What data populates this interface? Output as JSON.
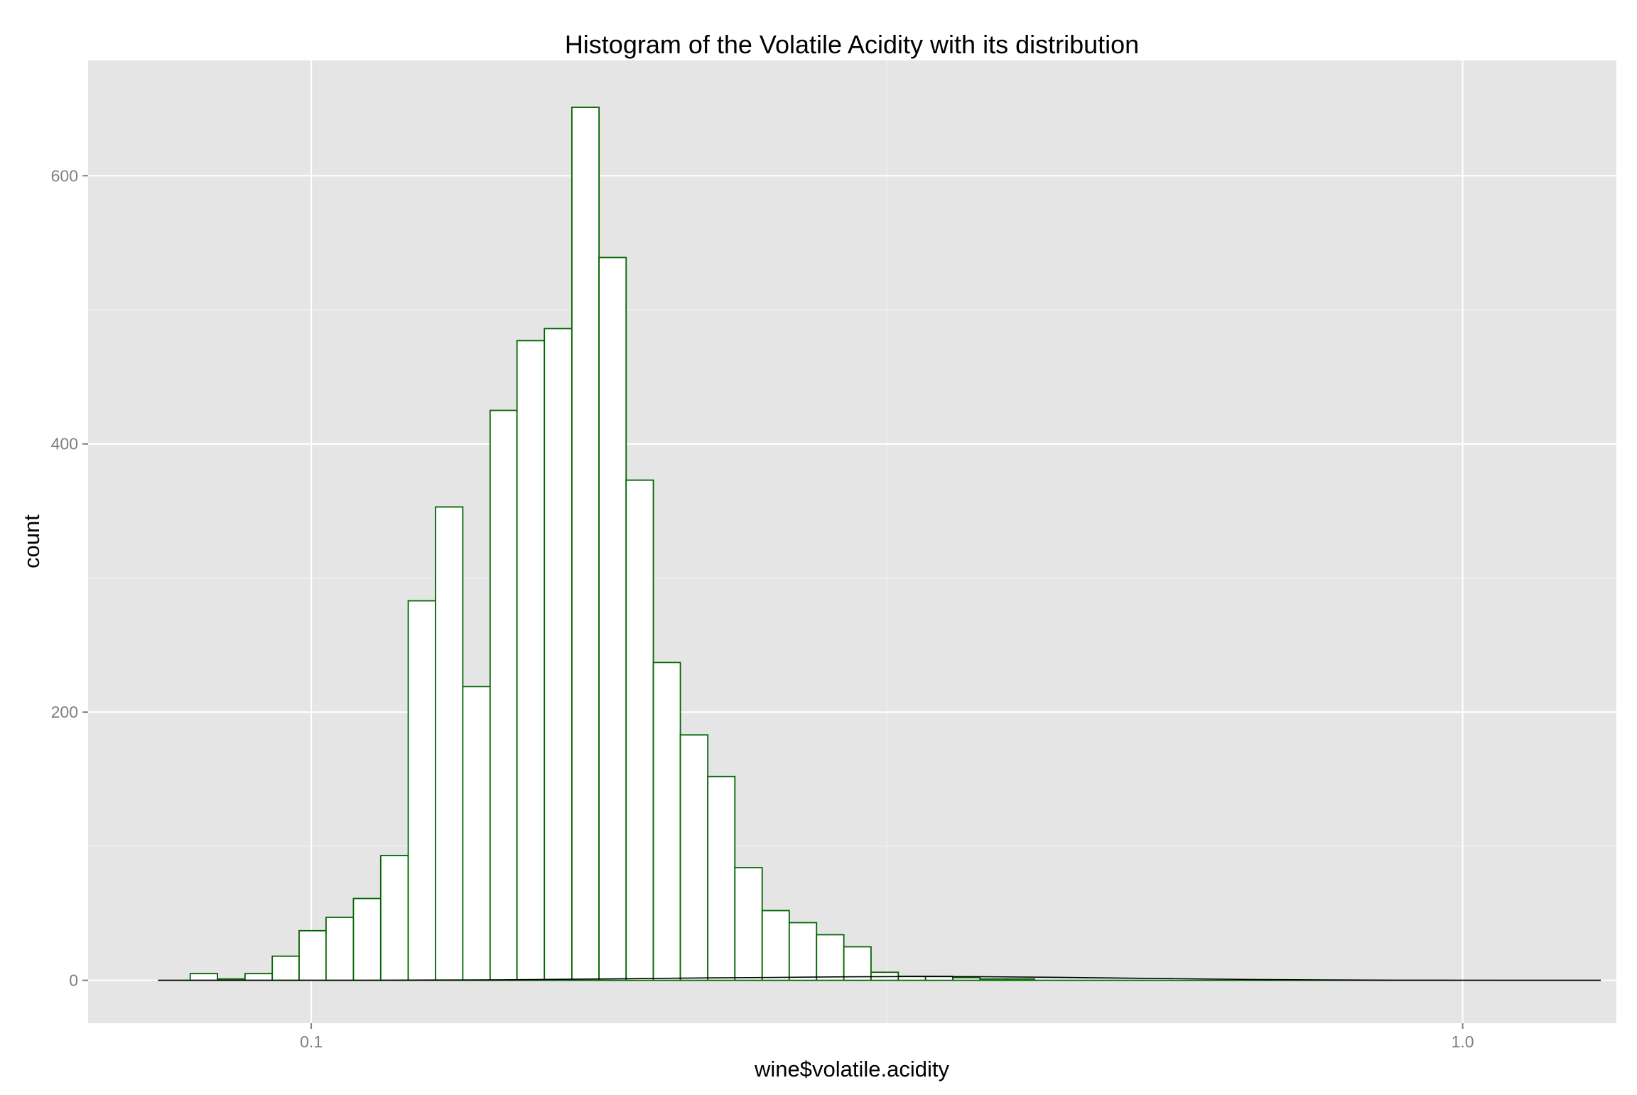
{
  "chart_data": {
    "type": "bar",
    "title": "Histogram of the Volatile Acidity with its distribution",
    "xlabel": "wine$volatile.acidity",
    "ylabel": "count",
    "x_scale": "log10",
    "xlim": [
      0.064,
      1.36
    ],
    "ylim": [
      -32,
      686
    ],
    "x_ticks": [
      {
        "value": 0.1,
        "label": "0.1"
      },
      {
        "value": 1.0,
        "label": "1.0"
      }
    ],
    "y_ticks": [
      {
        "value": 0,
        "label": "0"
      },
      {
        "value": 200,
        "label": "200"
      },
      {
        "value": 400,
        "label": "400"
      },
      {
        "value": 600,
        "label": "600"
      }
    ],
    "grid": true,
    "bin_edges": [
      0.0736,
      0.0846,
      0.0969,
      0.1113,
      0.1277,
      0.1463,
      0.1679,
      0.1926,
      0.2209,
      0.2534,
      0.2907,
      0.3336,
      0.3827,
      0.4391,
      0.5037,
      0.5779,
      0.663,
      0.7608,
      0.8727,
      1.0013,
      1.1488,
      1.3181
    ],
    "bins": [
      {
        "x0": 0.0785,
        "x1": 0.0829,
        "count": 5
      },
      {
        "x0": 0.0829,
        "x1": 0.0876,
        "count": 1
      },
      {
        "x0": 0.0876,
        "x1": 0.0925,
        "count": 5
      },
      {
        "x0": 0.0925,
        "x1": 0.0976,
        "count": 18
      },
      {
        "x0": 0.0976,
        "x1": 0.103,
        "count": 37
      },
      {
        "x0": 0.103,
        "x1": 0.1088,
        "count": 47
      },
      {
        "x0": 0.1088,
        "x1": 0.1149,
        "count": 61
      },
      {
        "x0": 0.1149,
        "x1": 0.1214,
        "count": 93
      },
      {
        "x0": 0.1214,
        "x1": 0.1282,
        "count": 283
      },
      {
        "x0": 0.1282,
        "x1": 0.1354,
        "count": 353
      },
      {
        "x0": 0.1354,
        "x1": 0.143,
        "count": 219
      },
      {
        "x0": 0.143,
        "x1": 0.1509,
        "count": 425
      },
      {
        "x0": 0.1509,
        "x1": 0.1594,
        "count": 477
      },
      {
        "x0": 0.1594,
        "x1": 0.1684,
        "count": 486
      },
      {
        "x0": 0.1684,
        "x1": 0.1778,
        "count": 651
      },
      {
        "x0": 0.1778,
        "x1": 0.1877,
        "count": 539
      },
      {
        "x0": 0.1877,
        "x1": 0.1982,
        "count": 373
      },
      {
        "x0": 0.1982,
        "x1": 0.2092,
        "count": 237
      },
      {
        "x0": 0.2092,
        "x1": 0.221,
        "count": 183
      },
      {
        "x0": 0.221,
        "x1": 0.2333,
        "count": 152
      },
      {
        "x0": 0.2333,
        "x1": 0.2464,
        "count": 84
      },
      {
        "x0": 0.2464,
        "x1": 0.2601,
        "count": 52
      },
      {
        "x0": 0.2601,
        "x1": 0.2747,
        "count": 43
      },
      {
        "x0": 0.2747,
        "x1": 0.2901,
        "count": 34
      },
      {
        "x0": 0.2901,
        "x1": 0.3063,
        "count": 25
      },
      {
        "x0": 0.3063,
        "x1": 0.3235,
        "count": 6
      },
      {
        "x0": 0.3235,
        "x1": 0.3416,
        "count": 3
      },
      {
        "x0": 0.3416,
        "x1": 0.3607,
        "count": 3
      },
      {
        "x0": 0.3607,
        "x1": 0.3809,
        "count": 2
      },
      {
        "x0": 0.3809,
        "x1": 0.4022,
        "count": 1
      },
      {
        "x0": 0.4022,
        "x1": 0.4248,
        "count": 1
      }
    ],
    "density_overlay": {
      "x": [
        0.0736,
        0.0846,
        0.0969,
        0.1113,
        0.1277,
        0.1463,
        0.1679,
        0.1926,
        0.2209,
        0.2534,
        0.2907,
        0.3336,
        0.3827,
        0.4391,
        0.5037,
        0.5779,
        0.663,
        0.7608,
        0.8727,
        1.0013,
        1.1488,
        1.3181
      ],
      "y": [
        0,
        0,
        0,
        0,
        0.2,
        0.4,
        0.8,
        1.3,
        1.8,
        2.2,
        2.6,
        2.8,
        2.7,
        2.3,
        1.7,
        1.1,
        0.6,
        0.3,
        0.1,
        0.05,
        0,
        0
      ]
    },
    "colors": {
      "panel_background": "#e5e5e5",
      "grid_major": "#ffffff",
      "grid_minor": "#f2f2f2",
      "bar_fill": "#ffffff",
      "bar_outline": "#006400",
      "density_line": "#000000",
      "tick_label": "#7f7f7f"
    }
  }
}
